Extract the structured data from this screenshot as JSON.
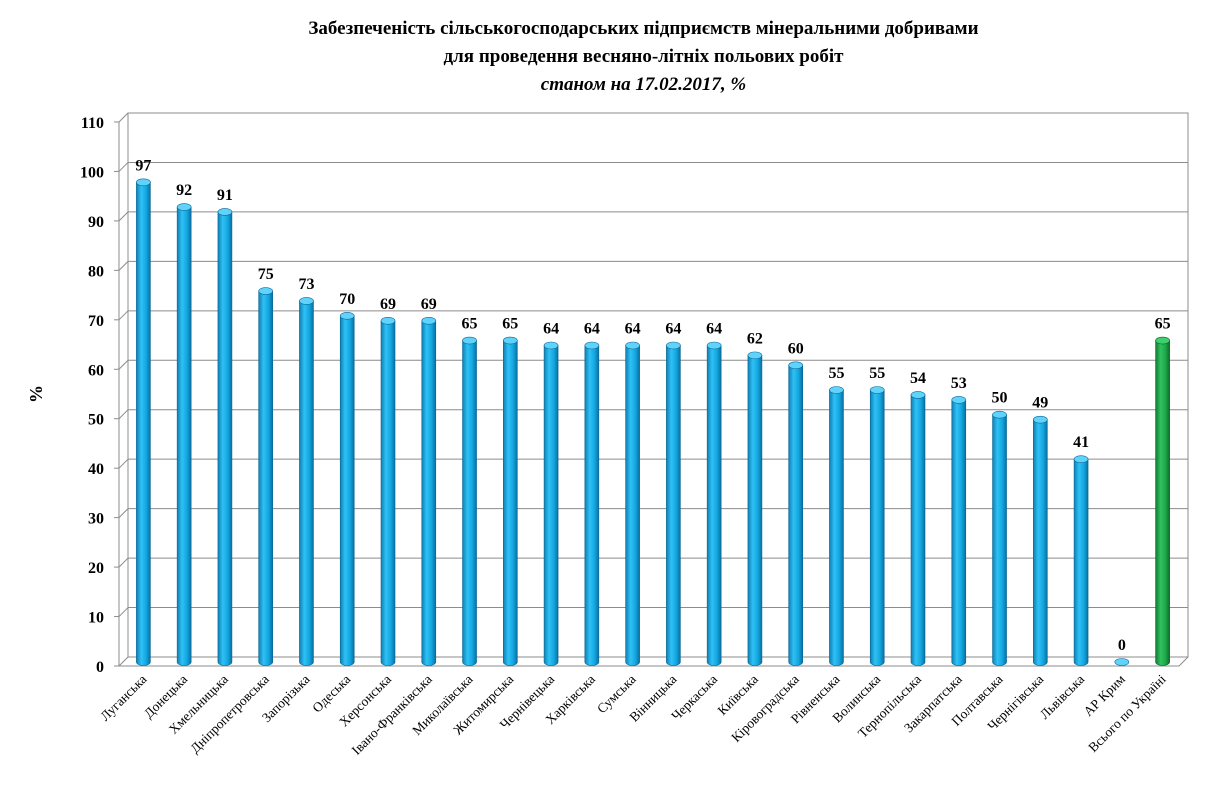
{
  "title_line1": "Забезпеченість сільськогосподарських підприємств мінеральними добривами",
  "title_line2": "для проведення весняно-літніх польових робіт",
  "subtitle": "станом на 17.02.2017, %",
  "chart_data": {
    "type": "bar",
    "title": "Забезпеченість сільськогосподарських підприємств мінеральними добривами для проведення весняно-літніх польових робіт",
    "subtitle": "станом на 17.02.2017, %",
    "ylabel": "%",
    "xlabel": "",
    "ylim": [
      0,
      110
    ],
    "yticks": [
      0,
      10,
      20,
      30,
      40,
      50,
      60,
      70,
      80,
      90,
      100,
      110
    ],
    "grid": true,
    "categories": [
      "Луганська",
      "Донецька",
      "Хмельницька",
      "Дніпропетровська",
      "Запорізька",
      "Одеська",
      "Херсонська",
      "Івано-Франківська",
      "Миколаївська",
      "Житомирська",
      "Чернівецька",
      "Харківська",
      "Сумська",
      "Вінницька",
      "Черкаська",
      "Київська",
      "Кіровоградська",
      "Рівненська",
      "Волинська",
      "Тернопільська",
      "Закарпатська",
      "Полтавська",
      "Чернігівська",
      "Львівська",
      "АР Крим",
      "Всього по Україні"
    ],
    "values": [
      97,
      92,
      91,
      75,
      73,
      70,
      69,
      69,
      65,
      65,
      64,
      64,
      64,
      64,
      64,
      62,
      60,
      55,
      55,
      54,
      53,
      50,
      49,
      41,
      0,
      65
    ],
    "colors": {
      "regions": "#1aaee6",
      "total": "#1fa84a",
      "total_index": 25
    }
  }
}
